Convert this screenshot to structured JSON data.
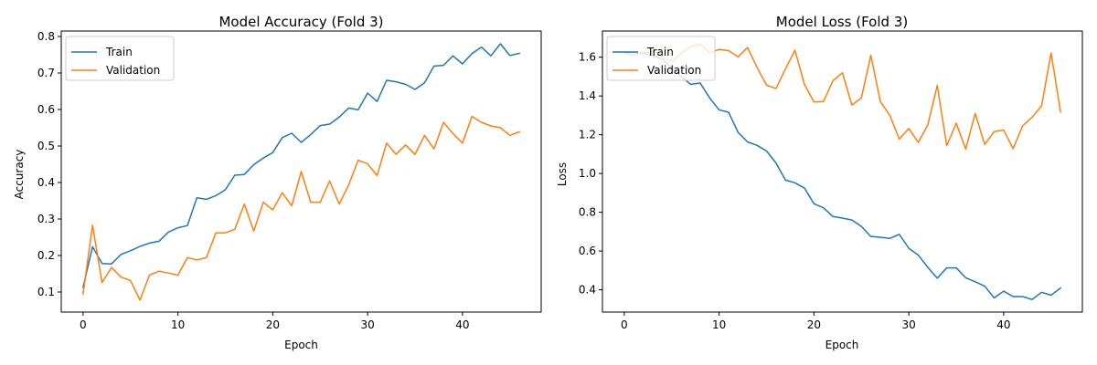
{
  "colors": {
    "train": "#1f77b4",
    "validation": "#ff7f0e"
  },
  "chart_data": [
    {
      "type": "line",
      "title": "Model Accuracy (Fold 3)",
      "xlabel": "Epoch",
      "ylabel": "Accuracy",
      "xlim": [
        -2.3,
        48.3
      ],
      "ylim": [
        0.045,
        0.815
      ],
      "xticks": [
        0,
        10,
        20,
        30,
        40
      ],
      "yticks": [
        0.1,
        0.2,
        0.3,
        0.4,
        0.5,
        0.6,
        0.7,
        0.8
      ],
      "ytick_labels": [
        "0.1",
        "0.2",
        "0.3",
        "0.4",
        "0.5",
        "0.6",
        "0.7",
        "0.8"
      ],
      "legend": "upper-left",
      "grid": false,
      "series": [
        {
          "name": "Train",
          "color": "#1f77b4",
          "values": [
            0.113,
            0.224,
            0.178,
            0.177,
            0.203,
            0.213,
            0.225,
            0.234,
            0.239,
            0.264,
            0.276,
            0.282,
            0.358,
            0.354,
            0.364,
            0.38,
            0.42,
            0.422,
            0.449,
            0.467,
            0.482,
            0.523,
            0.535,
            0.51,
            0.531,
            0.556,
            0.56,
            0.579,
            0.604,
            0.599,
            0.645,
            0.622,
            0.68,
            0.676,
            0.669,
            0.655,
            0.673,
            0.719,
            0.721,
            0.747,
            0.725,
            0.753,
            0.771,
            0.747,
            0.78,
            0.748,
            0.754
          ]
        },
        {
          "name": "Validation",
          "color": "#ff7f0e",
          "values": [
            0.094,
            0.283,
            0.126,
            0.167,
            0.141,
            0.131,
            0.078,
            0.146,
            0.157,
            0.152,
            0.146,
            0.194,
            0.188,
            0.194,
            0.262,
            0.262,
            0.272,
            0.341,
            0.267,
            0.346,
            0.325,
            0.372,
            0.336,
            0.43,
            0.346,
            0.346,
            0.404,
            0.341,
            0.393,
            0.461,
            0.451,
            0.419,
            0.508,
            0.477,
            0.503,
            0.477,
            0.529,
            0.492,
            0.565,
            0.534,
            0.508,
            0.581,
            0.565,
            0.555,
            0.55,
            0.529,
            0.539
          ]
        }
      ]
    },
    {
      "type": "line",
      "title": "Model Loss (Fold 3)",
      "xlabel": "Epoch",
      "ylabel": "Loss",
      "xlim": [
        -2.3,
        48.3
      ],
      "ylim": [
        0.285,
        1.735
      ],
      "xticks": [
        0,
        10,
        20,
        30,
        40
      ],
      "yticks": [
        0.4,
        0.6,
        0.8,
        1.0,
        1.2,
        1.4,
        1.6
      ],
      "ytick_labels": [
        "0.4",
        "0.6",
        "0.8",
        "1.0",
        "1.2",
        "1.4",
        "1.6"
      ],
      "legend": "upper-left",
      "grid": false,
      "series": [
        {
          "name": "Train",
          "color": "#1f77b4",
          "values": [
            1.623,
            1.623,
            1.619,
            1.61,
            1.59,
            1.545,
            1.5,
            1.46,
            1.467,
            1.39,
            1.328,
            1.316,
            1.212,
            1.163,
            1.145,
            1.116,
            1.054,
            0.966,
            0.952,
            0.925,
            0.844,
            0.823,
            0.778,
            0.77,
            0.76,
            0.727,
            0.675,
            0.671,
            0.665,
            0.686,
            0.614,
            0.579,
            0.516,
            0.46,
            0.513,
            0.513,
            0.462,
            0.441,
            0.419,
            0.358,
            0.393,
            0.365,
            0.365,
            0.35,
            0.387,
            0.372,
            0.409
          ]
        },
        {
          "name": "Validation",
          "color": "#ff7f0e",
          "values": [
            1.619,
            1.61,
            1.623,
            1.628,
            1.602,
            1.576,
            1.62,
            1.654,
            1.668,
            1.623,
            1.64,
            1.634,
            1.602,
            1.65,
            1.547,
            1.456,
            1.438,
            1.54,
            1.636,
            1.459,
            1.369,
            1.371,
            1.478,
            1.52,
            1.353,
            1.39,
            1.61,
            1.371,
            1.3,
            1.178,
            1.232,
            1.16,
            1.25,
            1.454,
            1.143,
            1.259,
            1.126,
            1.31,
            1.15,
            1.216,
            1.224,
            1.128,
            1.246,
            1.29,
            1.349,
            1.622,
            1.318
          ]
        }
      ]
    }
  ]
}
